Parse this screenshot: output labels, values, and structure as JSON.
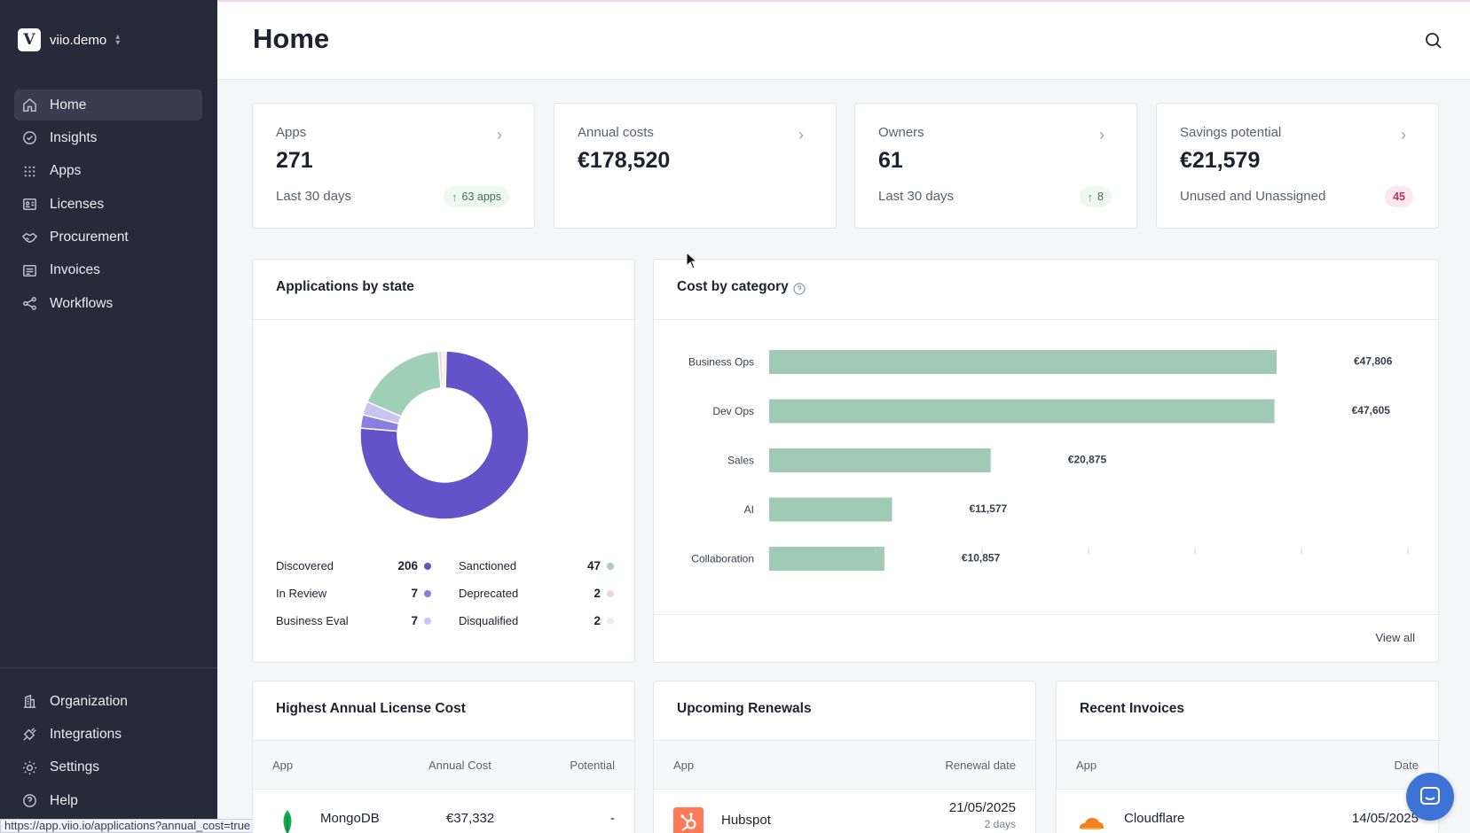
{
  "workspace": {
    "name": "viio.demo",
    "logo_letter": "V"
  },
  "nav": {
    "top": [
      {
        "label": "Home",
        "icon": "home-icon",
        "active": true
      },
      {
        "label": "Insights",
        "icon": "insights-icon"
      },
      {
        "label": "Apps",
        "icon": "apps-grid-icon"
      },
      {
        "label": "Licenses",
        "icon": "license-card-icon"
      },
      {
        "label": "Procurement",
        "icon": "handshake-icon"
      },
      {
        "label": "Invoices",
        "icon": "invoice-icon"
      },
      {
        "label": "Workflows",
        "icon": "workflow-icon"
      }
    ],
    "bottom": [
      {
        "label": "Organization",
        "icon": "building-icon"
      },
      {
        "label": "Integrations",
        "icon": "plug-icon"
      },
      {
        "label": "Settings",
        "icon": "gear-icon"
      },
      {
        "label": "Help",
        "icon": "help-icon"
      }
    ]
  },
  "status_url": "https://app.viio.io/applications?annual_cost=true",
  "header": {
    "title": "Home"
  },
  "kpis": [
    {
      "label": "Apps",
      "value": "271",
      "sub": "Last 30 days",
      "badge": "63 apps",
      "badge_type": "up"
    },
    {
      "label": "Annual costs",
      "value": "€178,520",
      "sub": "",
      "badge": "",
      "badge_type": ""
    },
    {
      "label": "Owners",
      "value": "61",
      "sub": "Last 30 days",
      "badge": "8",
      "badge_type": "up"
    },
    {
      "label": "Savings potential",
      "value": "€21,579",
      "sub": "Unused and Unassigned",
      "badge": "45",
      "badge_type": "red"
    }
  ],
  "apps_by_state": {
    "title": "Applications by state",
    "items": [
      {
        "name": "Discovered",
        "count": 206,
        "color": "#6453c8"
      },
      {
        "name": "In Review",
        "count": 7,
        "color": "#8a7fe0"
      },
      {
        "name": "Business Eval",
        "count": 7,
        "color": "#c9c4f2"
      },
      {
        "name": "Sanctioned",
        "count": 47,
        "color": "#9fcfb5"
      },
      {
        "name": "Deprecated",
        "count": 2,
        "color": "#f6d3db"
      },
      {
        "name": "Disqualified",
        "count": 2,
        "color": "#eeeeee"
      }
    ]
  },
  "cost_by_category": {
    "title": "Cost by category",
    "view_all": "View all",
    "help_icon": "question-circle-icon"
  },
  "chart_data": {
    "type": "bar",
    "orientation": "horizontal",
    "categories": [
      "Business Ops",
      "Dev Ops",
      "Sales",
      "AI",
      "Collaboration"
    ],
    "values": [
      47806,
      47605,
      20875,
      11577,
      10857
    ],
    "value_labels": [
      "€47,806",
      "€47,605",
      "€20,875",
      "€11,577",
      "€10,857"
    ],
    "bar_color": "#9fcab4",
    "xlim": [
      0,
      60000
    ]
  },
  "license_cost": {
    "title": "Highest Annual License Cost",
    "columns": [
      "App",
      "Annual Cost",
      "Potential"
    ],
    "rows": [
      {
        "app": "MongoDB",
        "cost": "€37,332",
        "potential": "-"
      }
    ]
  },
  "renewals": {
    "title": "Upcoming Renewals",
    "columns": [
      "App",
      "Renewal date"
    ],
    "rows": [
      {
        "app": "Hubspot",
        "date": "21/05/2025",
        "sub": "2 days"
      }
    ]
  },
  "invoices": {
    "title": "Recent Invoices",
    "columns": [
      "App",
      "Date"
    ],
    "rows": [
      {
        "app": "Cloudflare",
        "date": "14/05/2025"
      }
    ]
  }
}
